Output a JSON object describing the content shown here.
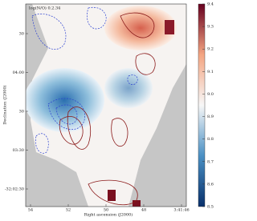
{
  "chart_data": {
    "type": "image",
    "annotation": "log(N/O) 0.2.34",
    "xlabel": "Right ascension (J2000)",
    "ylabel": "Declination (J2000)",
    "xtick_labels": [
      "54",
      "52",
      "50",
      "48",
      "3:41:46"
    ],
    "ytick_labels": [
      "30",
      "04:00",
      "30",
      "03:30",
      "-32:02:30"
    ],
    "colorbar": {
      "lim": [
        8.5,
        9.4
      ],
      "ticks": [
        8.5,
        8.6,
        8.7,
        8.8,
        8.9,
        {
          "value": 9.0,
          "label": "9.0"
        },
        9.1,
        9.2,
        9.3,
        9.4
      ]
    }
  }
}
